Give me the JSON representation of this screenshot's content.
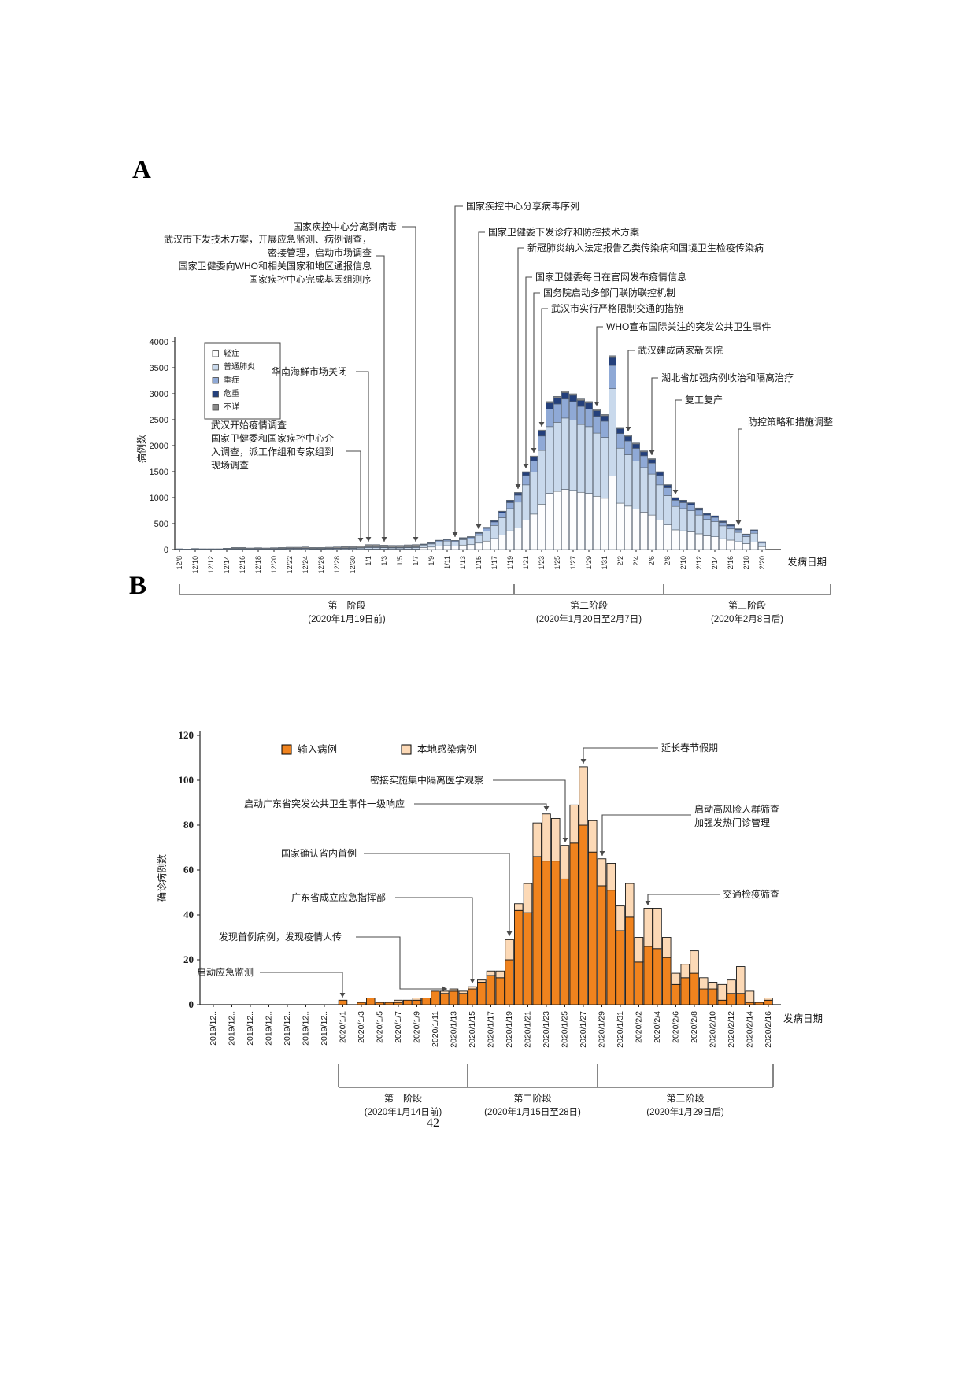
{
  "page": {
    "panel_a_label": "A",
    "panel_b_label": "B",
    "number": "42"
  },
  "chart_data": [
    {
      "id": "A",
      "type": "bar",
      "stacked": true,
      "title": "",
      "xlabel": "发病日期",
      "ylabel": "病例数",
      "ylim": [
        0,
        4000
      ],
      "ytick_step": 500,
      "grid": false,
      "legend_position": "upper-left-box",
      "dates": [
        "12/8",
        "12/9",
        "12/10",
        "12/11",
        "12/12",
        "12/13",
        "12/14",
        "12/15",
        "12/16",
        "12/17",
        "12/18",
        "12/19",
        "12/20",
        "12/21",
        "12/22",
        "12/23",
        "12/24",
        "12/25",
        "12/26",
        "12/27",
        "12/28",
        "12/29",
        "12/30",
        "12/31",
        "1/1",
        "1/2",
        "1/3",
        "1/4",
        "1/5",
        "1/6",
        "1/7",
        "1/8",
        "1/9",
        "1/10",
        "1/11",
        "1/12",
        "1/13",
        "1/14",
        "1/15",
        "1/16",
        "1/17",
        "1/18",
        "1/19",
        "1/20",
        "1/21",
        "1/22",
        "1/23",
        "1/24",
        "1/25",
        "1/26",
        "1/27",
        "1/28",
        "1/29",
        "1/30",
        "1/31",
        "2/1",
        "2/2",
        "2/3",
        "2/4",
        "2/5",
        "2/6",
        "2/7",
        "2/8",
        "2/9",
        "2/10",
        "2/11",
        "2/12",
        "2/13",
        "2/14",
        "2/15",
        "2/16",
        "2/17",
        "2/18",
        "2/19",
        "2/20"
      ],
      "series": [
        {
          "name": "轻症",
          "color": "#fdfdfe",
          "values": [
            2,
            1,
            2,
            2,
            2,
            2,
            3,
            4,
            4,
            3,
            4,
            3,
            4,
            4,
            5,
            5,
            5,
            4,
            4,
            5,
            5,
            6,
            6,
            7,
            10,
            10,
            9,
            8,
            8,
            9,
            10,
            40,
            49,
            68,
            76,
            66,
            87,
            95,
            125,
            163,
            213,
            281,
            361,
            418,
            570,
            684,
            874,
            1083,
            1121,
            1159,
            1140,
            1102,
            1083,
            1026,
            988,
            1417,
            893,
            836,
            779,
            722,
            665,
            570,
            475,
            380,
            361,
            342,
            304,
            266,
            247,
            209,
            182,
            152,
            114,
            144,
            57
          ]
        },
        {
          "name": "普通肺炎",
          "color": "#c9d9ec",
          "values": [
            5,
            3,
            6,
            5,
            5,
            5,
            8,
            12,
            12,
            9,
            11,
            9,
            11,
            12,
            14,
            14,
            15,
            12,
            12,
            14,
            15,
            17,
            18,
            21,
            29,
            29,
            26,
            24,
            24,
            27,
            29,
            47,
            59,
            81,
            90,
            79,
            104,
            112,
            149,
            194,
            252,
            333,
            428,
            495,
            675,
            810,
            1035,
            1283,
            1328,
            1373,
            1350,
            1305,
            1283,
            1215,
            1170,
            1679,
            1058,
            990,
            923,
            855,
            788,
            675,
            563,
            450,
            428,
            405,
            360,
            315,
            293,
            248,
            216,
            180,
            135,
            171,
            68
          ]
        },
        {
          "name": "重症",
          "color": "#8fa9d6",
          "values": [
            1,
            1,
            2,
            1,
            1,
            1,
            2,
            3,
            3,
            2,
            3,
            2,
            3,
            3,
            4,
            4,
            4,
            3,
            3,
            4,
            4,
            4,
            5,
            6,
            8,
            8,
            7,
            6,
            6,
            7,
            8,
            13,
            16,
            22,
            24,
            21,
            28,
            30,
            40,
            52,
            67,
            89,
            114,
            132,
            180,
            216,
            276,
            342,
            354,
            366,
            360,
            348,
            342,
            324,
            312,
            448,
            282,
            264,
            246,
            228,
            210,
            180,
            150,
            120,
            114,
            108,
            96,
            84,
            78,
            66,
            58,
            48,
            36,
            46,
            18
          ]
        },
        {
          "name": "危重",
          "color": "#24407c",
          "values": [
            0,
            0,
            0,
            0,
            0,
            0,
            1,
            1,
            1,
            1,
            1,
            1,
            1,
            1,
            1,
            1,
            1,
            1,
            1,
            1,
            1,
            1,
            1,
            1,
            2,
            2,
            2,
            2,
            2,
            2,
            2,
            4,
            5,
            7,
            8,
            7,
            9,
            10,
            13,
            17,
            22,
            30,
            38,
            44,
            60,
            72,
            92,
            114,
            118,
            122,
            120,
            116,
            114,
            108,
            104,
            149,
            94,
            88,
            82,
            76,
            70,
            60,
            50,
            40,
            38,
            36,
            32,
            28,
            26,
            22,
            19,
            16,
            12,
            15,
            6
          ]
        },
        {
          "name": "不详",
          "color": "#8a8a8a",
          "values": [
            7,
            5,
            10,
            7,
            7,
            7,
            11,
            20,
            20,
            15,
            16,
            15,
            16,
            20,
            21,
            21,
            25,
            20,
            20,
            21,
            25,
            27,
            30,
            35,
            46,
            46,
            41,
            40,
            40,
            45,
            46,
            1,
            1,
            2,
            2,
            2,
            2,
            3,
            3,
            4,
            6,
            7,
            9,
            11,
            15,
            18,
            23,
            28,
            29,
            30,
            30,
            29,
            28,
            27,
            26,
            37,
            23,
            22,
            20,
            19,
            17,
            15,
            12,
            10,
            9,
            9,
            8,
            7,
            6,
            5,
            5,
            4,
            3,
            4,
            1
          ]
        }
      ],
      "annotations": [
        {
          "name": "wuhan-epi-investigation",
          "target": "12/31",
          "lines": [
            "武汉开始疫情调查",
            "国家卫健委和国家疾控中心介",
            "入调查，派工作组和专家组到",
            "现场调查"
          ]
        },
        {
          "name": "huanan-market-closed",
          "target": "1/1",
          "lines": [
            "华南海鲜市场关闭"
          ]
        },
        {
          "name": "wuhan-tech-plan",
          "target": "1/3",
          "lines": [
            "武汉市下发技术方案，开展应急监测、病例调查，",
            "密接管理，启动市场调查",
            "国家卫健委向WHO和相关国家和地区通报信息",
            "国家疾控中心完成基因组测序"
          ]
        },
        {
          "name": "cdc-virus-isolated",
          "target": "1/7",
          "lines": [
            "国家疾控中心分离到病毒"
          ]
        },
        {
          "name": "cdc-virus-sequence-shared",
          "target": "1/12",
          "lines": [
            "国家疾控中心分享病毒序列"
          ]
        },
        {
          "name": "nhc-treatment-plan",
          "target": "1/15",
          "lines": [
            "国家卫健委下发诊疗和防控技术方案"
          ]
        },
        {
          "name": "notifiable-disease-class-b",
          "target": "1/20",
          "lines": [
            "新冠肺炎纳入法定报告乙类传染病和国境卫生检疫传染病"
          ]
        },
        {
          "name": "nhc-daily-release",
          "target": "1/21",
          "lines": [
            "国家卫健委每日在官网发布疫情信息"
          ]
        },
        {
          "name": "joint-prevention-mechanism",
          "target": "1/22",
          "lines": [
            "国务院启动多部门联防联控机制"
          ]
        },
        {
          "name": "wuhan-traffic-restriction",
          "target": "1/23",
          "lines": [
            "武汉市实行严格限制交通的措施"
          ]
        },
        {
          "name": "who-pheic",
          "target": "1/30",
          "lines": [
            "WHO宣布国际关注的突发公共卫生事件"
          ]
        },
        {
          "name": "wuhan-new-hospitals",
          "target": "2/3",
          "lines": [
            "武汉建成两家新医院"
          ]
        },
        {
          "name": "hubei-case-treatment",
          "target": "2/6",
          "lines": [
            "湖北省加强病例收治和隔离治疗"
          ]
        },
        {
          "name": "work-resumption",
          "target": "2/9",
          "lines": [
            "复工复产"
          ]
        },
        {
          "name": "strategy-adjustment",
          "target": "2/17",
          "lines": [
            "防控策略和措施调整"
          ]
        }
      ],
      "phases": [
        {
          "label": "第一阶段",
          "sublabel": "(2020年1月19日前)",
          "from": "12/8",
          "to": "1/19"
        },
        {
          "label": "第二阶段",
          "sublabel": "(2020年1月20日至2月7日)",
          "from": "1/20",
          "to": "2/7"
        },
        {
          "label": "第三阶段",
          "sublabel": "(2020年2月8日后)",
          "from": "2/8",
          "to": "2/20"
        }
      ]
    },
    {
      "id": "B",
      "type": "bar",
      "stacked": true,
      "title": "",
      "xlabel": "发病日期",
      "ylabel": "确诊病例数",
      "ylim": [
        0,
        120
      ],
      "ytick_step": 20,
      "grid": false,
      "legend_position": "top-inline",
      "dec_tick_display": "2019/12..",
      "dates": [
        "2019/12/18",
        "2019/12/19",
        "2019/12/20",
        "2019/12/21",
        "2019/12/22",
        "2019/12/23",
        "2019/12/24",
        "2019/12/25",
        "2019/12/26",
        "2019/12/27",
        "2019/12/28",
        "2019/12/29",
        "2019/12/30",
        "2019/12/31",
        "2020/1/1",
        "2020/1/2",
        "2020/1/3",
        "2020/1/4",
        "2020/1/5",
        "2020/1/6",
        "2020/1/7",
        "2020/1/8",
        "2020/1/9",
        "2020/1/10",
        "2020/1/11",
        "2020/1/12",
        "2020/1/13",
        "2020/1/14",
        "2020/1/15",
        "2020/1/16",
        "2020/1/17",
        "2020/1/18",
        "2020/1/19",
        "2020/1/20",
        "2020/1/21",
        "2020/1/22",
        "2020/1/23",
        "2020/1/24",
        "2020/1/25",
        "2020/1/26",
        "2020/1/27",
        "2020/1/28",
        "2020/1/29",
        "2020/1/30",
        "2020/1/31",
        "2020/2/1",
        "2020/2/2",
        "2020/2/3",
        "2020/2/4",
        "2020/2/5",
        "2020/2/6",
        "2020/2/7",
        "2020/2/8",
        "2020/2/9",
        "2020/2/10",
        "2020/2/11",
        "2020/2/12",
        "2020/2/13",
        "2020/2/14",
        "2020/2/15",
        "2020/2/16"
      ],
      "series": [
        {
          "name": "输入病例",
          "color": "#f0831e",
          "values": [
            0,
            0,
            0,
            0,
            0,
            0,
            0,
            0,
            0,
            0,
            0,
            0,
            0,
            0,
            2,
            0,
            1,
            3,
            1,
            1,
            1,
            2,
            2,
            3,
            6,
            5,
            6,
            5,
            7,
            10,
            13,
            12,
            20,
            42,
            41,
            66,
            64,
            64,
            56,
            72,
            80,
            68,
            53,
            51,
            33,
            39,
            19,
            26,
            25,
            21,
            9,
            12,
            14,
            7,
            7,
            2,
            5,
            5,
            1,
            1,
            2
          ]
        },
        {
          "name": "本地感染病例",
          "color": "#fcd9b6",
          "values": [
            0,
            0,
            0,
            0,
            0,
            0,
            0,
            0,
            0,
            0,
            0,
            0,
            0,
            0,
            0,
            0,
            0,
            0,
            0,
            0,
            1,
            0,
            1,
            0,
            0,
            1,
            1,
            1,
            1,
            1,
            2,
            3,
            9,
            3,
            13,
            15,
            21,
            19,
            15,
            17,
            26,
            14,
            12,
            12,
            11,
            15,
            11,
            17,
            18,
            9,
            5,
            6,
            10,
            5,
            3,
            7,
            6,
            12,
            5,
            0,
            1
          ]
        }
      ],
      "annotations": [
        {
          "name": "emergency-monitoring",
          "target": "2020/1/1",
          "lines": [
            "启动应急监测"
          ]
        },
        {
          "name": "first-case-found",
          "target": "2020/1/13",
          "lines": [
            "发现首例病例，发现疫情人传"
          ]
        },
        {
          "name": "gd-emergency-command",
          "target": "2020/1/15",
          "lines": [
            "广东省成立应急指挥部"
          ]
        },
        {
          "name": "first-confirmed-in-province",
          "target": "2020/1/19",
          "lines": [
            "国家确认省内首例"
          ]
        },
        {
          "name": "gd-level1-response",
          "target": "2020/1/23",
          "lines": [
            "启动广东省突发公共卫生事件一级响应"
          ]
        },
        {
          "name": "centralized-quarantine-observation",
          "target": "2020/1/25",
          "lines": [
            "密接实施集中隔离医学观察"
          ]
        },
        {
          "name": "spring-festival-extension",
          "target": "2020/1/27",
          "lines": [
            "延长春节假期"
          ]
        },
        {
          "name": "high-risk-screening",
          "target": "2020/1/29",
          "lines": [
            "启动高风险人群筛查",
            "加强发热门诊管理"
          ]
        },
        {
          "name": "traffic-quarantine-screening",
          "target": "2020/2/3",
          "lines": [
            "交通检疫筛查"
          ]
        }
      ],
      "phases": [
        {
          "label": "第一阶段",
          "sublabel": "(2020年1月14日前)",
          "from": "2020/1/1",
          "to": "2020/1/14"
        },
        {
          "label": "第二阶段",
          "sublabel": "(2020年1月15日至28日)",
          "from": "2020/1/15",
          "to": "2020/1/28"
        },
        {
          "label": "第三阶段",
          "sublabel": "(2020年1月29日后)",
          "from": "2020/1/29",
          "to": "2020/2/16"
        }
      ]
    }
  ]
}
